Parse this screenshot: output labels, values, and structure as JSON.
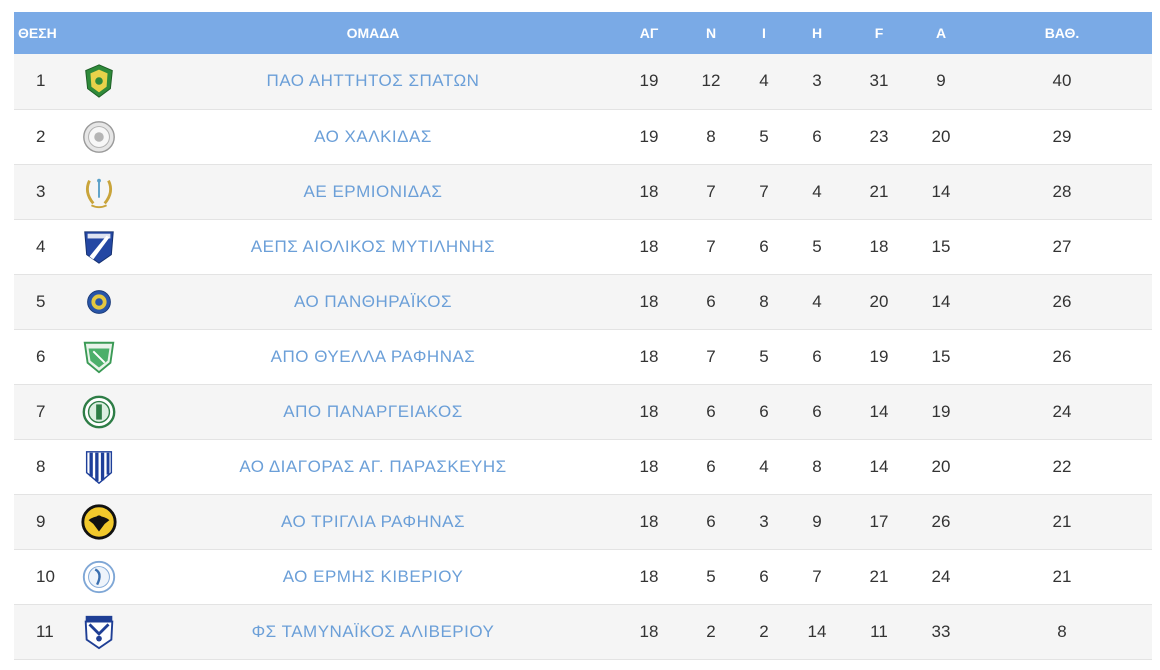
{
  "table": {
    "headers": {
      "pos": "ΘΕΣΗ",
      "team": "ΟΜΑΔΑ",
      "played": "ΑΓ",
      "wins": "Ν",
      "draws": "Ι",
      "losses": "Η",
      "goals_for": "F",
      "goals_against": "A",
      "points": "ΒΑΘ."
    },
    "rows": [
      {
        "pos": "1",
        "team": "ΠΑΟ ΑΗΤΤΗΤΟΣ ΣΠΑΤΩΝ",
        "played": "19",
        "wins": "12",
        "draws": "4",
        "losses": "3",
        "goals_for": "31",
        "goals_against": "9",
        "points": "40",
        "crest": "shield-green-crest"
      },
      {
        "pos": "2",
        "team": "ΑΟ ΧΑΛΚΙΔΑΣ",
        "played": "19",
        "wins": "8",
        "draws": "5",
        "losses": "6",
        "goals_for": "23",
        "goals_against": "20",
        "points": "29",
        "crest": "round-seal-crest"
      },
      {
        "pos": "3",
        "team": "ΑΕ ΕΡΜΙΟΝΙΔΑΣ",
        "played": "18",
        "wins": "7",
        "draws": "7",
        "losses": "4",
        "goals_for": "21",
        "goals_against": "14",
        "points": "28",
        "crest": "laurel-crest"
      },
      {
        "pos": "4",
        "team": "ΑΕΠΣ ΑΙΟΛΙΚΟΣ ΜΥΤΙΛΗΝΗΣ",
        "played": "18",
        "wins": "7",
        "draws": "6",
        "losses": "5",
        "goals_for": "18",
        "goals_against": "15",
        "points": "27",
        "crest": "blue-white-stripe-shield-crest"
      },
      {
        "pos": "5",
        "team": "ΑΟ ΠΑΝΘΗΡΑΪΚΟΣ",
        "played": "18",
        "wins": "6",
        "draws": "8",
        "losses": "4",
        "goals_for": "20",
        "goals_against": "14",
        "points": "26",
        "crest": "blue-yellow-round-crest"
      },
      {
        "pos": "6",
        "team": "ΑΠΟ ΘΥΕΛΛΑ ΡΑΦΗΝΑΣ",
        "played": "18",
        "wins": "7",
        "draws": "5",
        "losses": "6",
        "goals_for": "19",
        "goals_against": "15",
        "points": "26",
        "crest": "green-shield-crest"
      },
      {
        "pos": "7",
        "team": "ΑΠΟ ΠΑΝΑΡΓΕΙΑΚΟΣ",
        "played": "18",
        "wins": "6",
        "draws": "6",
        "losses": "6",
        "goals_for": "14",
        "goals_against": "19",
        "points": "24",
        "crest": "green-round-crest"
      },
      {
        "pos": "8",
        "team": "ΑΟ ΔΙΑΓΟΡΑΣ ΑΓ. ΠΑΡΑΣΚΕΥΗΣ",
        "played": "18",
        "wins": "6",
        "draws": "4",
        "losses": "8",
        "goals_for": "14",
        "goals_against": "20",
        "points": "22",
        "crest": "blue-stripes-shield-crest"
      },
      {
        "pos": "9",
        "team": "ΑΟ ΤΡΙΓΛΙΑ ΡΑΦΗΝΑΣ",
        "played": "18",
        "wins": "6",
        "draws": "3",
        "losses": "9",
        "goals_for": "17",
        "goals_against": "26",
        "points": "21",
        "crest": "yellow-black-eagle-crest"
      },
      {
        "pos": "10",
        "team": "ΑΟ ΕΡΜΗΣ ΚΙΒΕΡΙΟΥ",
        "played": "18",
        "wins": "5",
        "draws": "6",
        "losses": "7",
        "goals_for": "21",
        "goals_against": "24",
        "points": "21",
        "crest": "blue-round-seal-crest"
      },
      {
        "pos": "11",
        "team": "ΦΣ ΤΑΜΥΝΑΪΚΟΣ ΑΛΙΒΕΡΙΟΥ",
        "played": "18",
        "wins": "2",
        "draws": "2",
        "losses": "14",
        "goals_for": "11",
        "goals_against": "33",
        "points": "8",
        "crest": "blue-white-shield-crest"
      }
    ]
  }
}
